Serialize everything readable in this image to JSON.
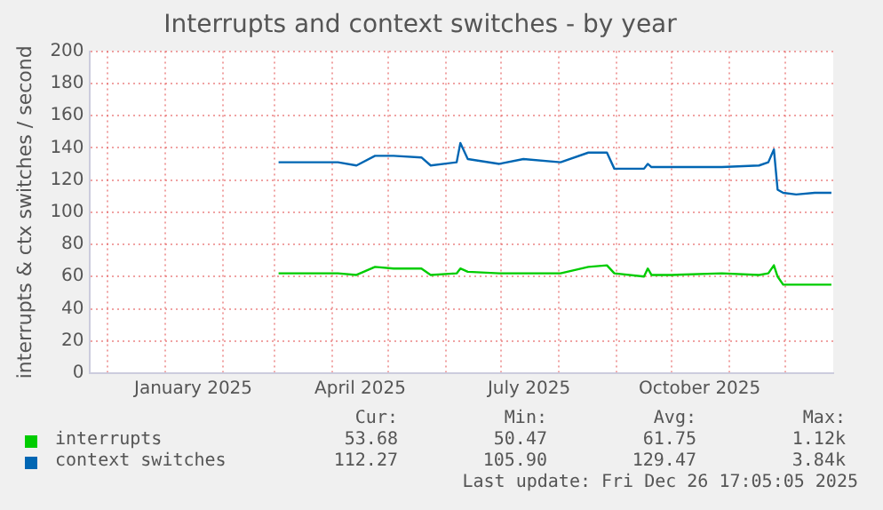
{
  "chart_data": {
    "type": "line",
    "title": "Interrupts and context switches - by year",
    "ylabel": "interrupts & ctx switches / second",
    "x": [
      "2025-03-03",
      "2025-03-20",
      "2025-04-04",
      "2025-04-14",
      "2025-04-24",
      "2025-05-04",
      "2025-05-19",
      "2025-05-24",
      "2025-06-07",
      "2025-06-09",
      "2025-06-13",
      "2025-06-30",
      "2025-07-13",
      "2025-08-02",
      "2025-08-17",
      "2025-08-27",
      "2025-08-31",
      "2025-09-16",
      "2025-09-18",
      "2025-09-20",
      "2025-10-01",
      "2025-10-28",
      "2025-11-17",
      "2025-11-22",
      "2025-11-25",
      "2025-11-27",
      "2025-11-30",
      "2025-12-07",
      "2025-12-17",
      "2025-12-26"
    ],
    "series": [
      {
        "name": "interrupts",
        "color": "#00cc00",
        "values": [
          62,
          62,
          62,
          61,
          66,
          65,
          65,
          61,
          62,
          65,
          63,
          62,
          62,
          62,
          66,
          67,
          62,
          60,
          65,
          61,
          61,
          62,
          61,
          62,
          67,
          60,
          55,
          55,
          55,
          55
        ]
      },
      {
        "name": "context switches",
        "color": "#0066b3",
        "values": [
          131,
          131,
          131,
          129,
          135,
          135,
          134,
          129,
          131,
          143,
          133,
          130,
          133,
          131,
          137,
          137,
          127,
          127,
          130,
          128,
          128,
          128,
          129,
          131,
          139,
          114,
          112,
          111,
          112,
          112
        ]
      }
    ],
    "xlim": [
      "2024-11-21",
      "2025-12-27"
    ],
    "xticks": [
      {
        "value": "2024-12-01",
        "label": null
      },
      {
        "value": "2025-01-01",
        "label": null
      },
      {
        "value": "2025-01-16",
        "label": "January 2025"
      },
      {
        "value": "2025-02-01",
        "label": null
      },
      {
        "value": "2025-03-01",
        "label": null
      },
      {
        "value": "2025-04-01",
        "label": null
      },
      {
        "value": "2025-04-16",
        "label": "April 2025"
      },
      {
        "value": "2025-05-01",
        "label": null
      },
      {
        "value": "2025-06-01",
        "label": null
      },
      {
        "value": "2025-07-01",
        "label": null
      },
      {
        "value": "2025-07-16",
        "label": "July 2025"
      },
      {
        "value": "2025-08-01",
        "label": null
      },
      {
        "value": "2025-09-01",
        "label": null
      },
      {
        "value": "2025-10-01",
        "label": null
      },
      {
        "value": "2025-10-16",
        "label": "October 2025"
      },
      {
        "value": "2025-11-01",
        "label": null
      },
      {
        "value": "2025-12-01",
        "label": null
      }
    ],
    "ylim": [
      0,
      200
    ],
    "yticks": [
      0,
      20,
      40,
      60,
      80,
      100,
      120,
      140,
      160,
      180,
      200
    ],
    "grid": true,
    "legend": "bottom left",
    "marker": "none",
    "line_style": "solid",
    "annotations": [
      "Cur:",
      "Min:",
      "Avg:",
      "Max:",
      "53.68",
      "50.47",
      "61.75",
      "1.12k",
      "112.27",
      "105.90",
      "129.47",
      "3.84k",
      "Last update: Fri Dec 26 17:05:05 2025"
    ]
  }
}
